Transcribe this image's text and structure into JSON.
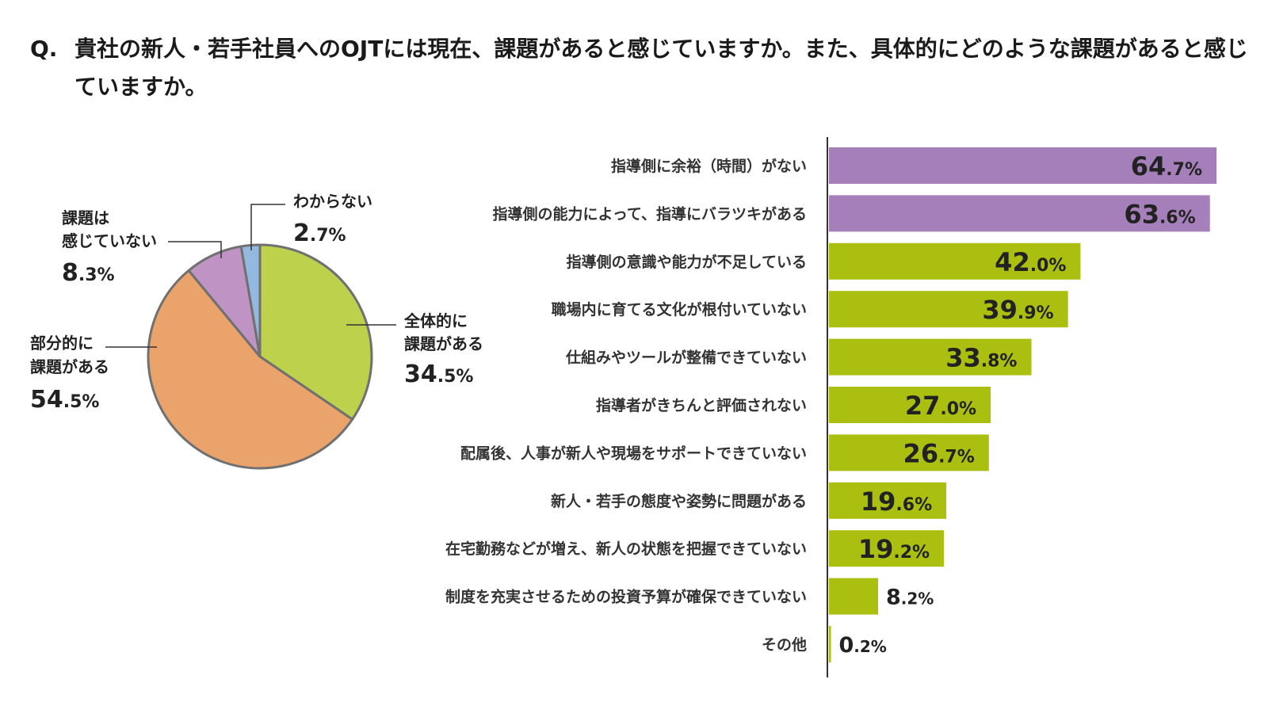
{
  "question": {
    "prefix": "Q.",
    "text": "貴社の新人・若手社員へのOJTには現在、課題があると感じていますか。また、具体的にどのような課題があると感じていますか。"
  },
  "chart_data": [
    {
      "type": "pie",
      "categories": [
        "全体的に課題がある",
        "部分的に課題がある",
        "課題は感じていない",
        "わからない"
      ],
      "label_lines": [
        [
          "全体的に",
          "課題がある"
        ],
        [
          "部分的に",
          "課題がある"
        ],
        [
          "課題は",
          "感じていない"
        ],
        [
          "わからない"
        ]
      ],
      "values": [
        34.5,
        54.5,
        8.3,
        2.7
      ],
      "value_labels": [
        "34.5%",
        "54.5%",
        "8.3%",
        "2.7%"
      ],
      "colors": [
        "#bdd14d",
        "#eba36c",
        "#bf93c4",
        "#93b9e0"
      ],
      "stroke_color": "#707070"
    },
    {
      "type": "bar",
      "orientation": "horizontal",
      "categories": [
        "指導側に余裕（時間）がない",
        "指導側の能力によって、指導にバラツキがある",
        "指導側の意識や能力が不足している",
        "職場内に育てる文化が根付いていない",
        "仕組みやツールが整備できていない",
        "指導者がきちんと評価されない",
        "配属後、人事が新人や現場をサポートできていない",
        "新人・若手の態度や姿勢に問題がある",
        "在宅勤務などが増え、新人の状態を把握できていない",
        "制度を充実させるための投資予算が確保できていない",
        "その他"
      ],
      "values": [
        64.7,
        63.6,
        42.0,
        39.9,
        33.8,
        27.0,
        26.7,
        19.6,
        19.2,
        8.2,
        0.2
      ],
      "value_labels": [
        "64.7%",
        "63.6%",
        "42.0%",
        "39.9%",
        "33.8%",
        "27.0%",
        "26.7%",
        "19.6%",
        "19.2%",
        "8.2%",
        "0.2%"
      ],
      "colors": [
        "#a47fba",
        "#a47fba",
        "#aabf0f",
        "#aabf0f",
        "#aabf0f",
        "#aabf0f",
        "#aabf0f",
        "#aabf0f",
        "#aabf0f",
        "#aabf0f",
        "#aabf0f"
      ],
      "value_text_colors": {
        "inside": "#ffffff",
        "outside": "#aabf0f"
      },
      "axis_color": "#333333",
      "xlim": [
        0,
        100
      ]
    }
  ]
}
